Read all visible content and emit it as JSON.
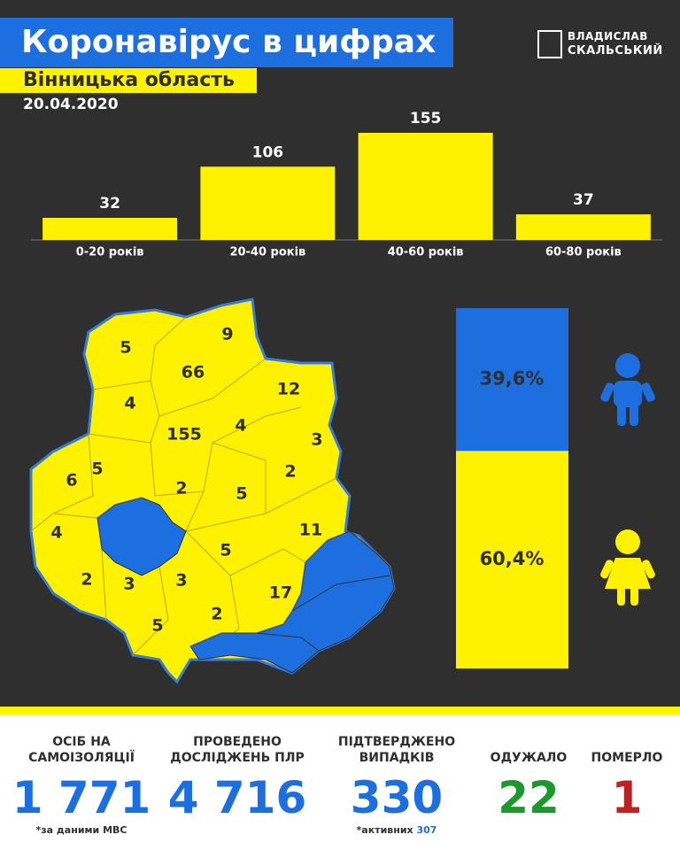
{
  "header": {
    "title": "Коронавірус в цифрах",
    "subtitle": "Вінницька область",
    "date": "20.04.2020",
    "author_first": "ВЛАДИСЛАВ",
    "author_last": "СКАЛЬСЬКИЙ"
  },
  "chart_data": {
    "type": "bar",
    "categories": [
      "0-20 років",
      "20-40 років",
      "40-60 років",
      "60-80 років"
    ],
    "values": [
      32,
      106,
      155,
      37
    ],
    "color": "#fff200",
    "ylim": [
      0,
      155
    ]
  },
  "map": {
    "values": [
      5,
      9,
      66,
      12,
      4,
      155,
      4,
      3,
      5,
      6,
      2,
      2,
      5,
      4,
      11,
      5,
      2,
      3,
      3,
      17,
      2,
      5
    ]
  },
  "gender": {
    "values": [
      39.6,
      60.4
    ],
    "value_labels": [
      "39,6%",
      "60,4%"
    ],
    "colors": [
      "#1d6fe0",
      "#fff200"
    ]
  },
  "stats": [
    {
      "label": [
        "ОСІБ НА",
        "САМОІЗОЛЯЦІЇ"
      ],
      "value": "1 771",
      "color": "#1d6fe0",
      "note": "*за даними МВС"
    },
    {
      "label": [
        "ПРОВЕДЕНО",
        "ДОСЛІДЖЕНЬ ПЛР"
      ],
      "value": "4 716",
      "color": "#1d6fe0"
    },
    {
      "label": [
        "ПІДТВЕРДЖЕНО",
        "ВИПАДКІВ"
      ],
      "value": "330",
      "color": "#1d6fe0",
      "note": "*активних ",
      "note_value": "307"
    },
    {
      "label": [
        "ОДУЖАЛО"
      ],
      "value": "22",
      "color": "#1a9a2a"
    },
    {
      "label": [
        "ПОМЕРЛО"
      ],
      "value": "1",
      "color": "#c41e1e"
    }
  ]
}
